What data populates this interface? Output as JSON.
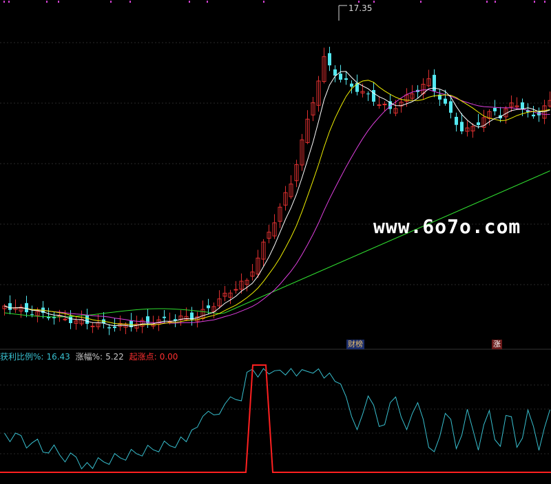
{
  "peak_price": "17.35",
  "watermark": "www.6o7o.com",
  "badges": {
    "cai_bang": "财榜",
    "zhang": "涨"
  },
  "indicator_legend": {
    "profit_label": "获利比例%:",
    "profit_value": "16.43",
    "amp_label": "涨幅%:",
    "amp_value": "5.22",
    "start_label": "起涨点:",
    "start_value": "0.00"
  },
  "colors": {
    "up": "#e03030",
    "down": "#54e8f0",
    "ma5": "#ffffff",
    "ma10": "#f0f000",
    "ma20": "#e040e0",
    "ma60": "#30e030",
    "indicator_line": "#38c0d0",
    "start_point": "#ff2020",
    "legend_cyan": "#38c0d0",
    "legend_gray": "#c8c8c8",
    "legend_red": "#ff3030"
  },
  "chart_data": {
    "type": "line",
    "series": [
      {
        "values": [
          16.43,
          5.22,
          0.0
        ]
      }
    ]
  }
}
